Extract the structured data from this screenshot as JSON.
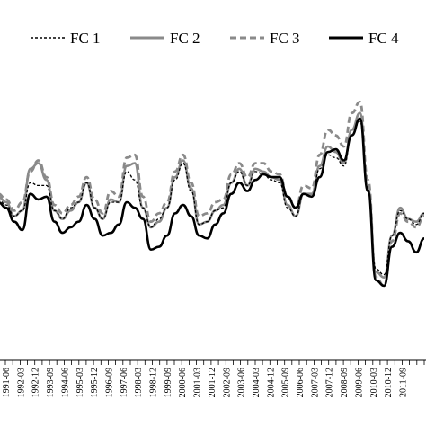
{
  "chart_data": {
    "type": "line",
    "title": "",
    "xlabel": "",
    "ylabel": "",
    "grid": false,
    "legend_position": "top",
    "x_tick_labels": [
      "1991-06",
      "1992-03",
      "1992-12",
      "1993-09",
      "1994-06",
      "1995-03",
      "1995-12",
      "1996-09",
      "1997-06",
      "1998-03",
      "1998-12",
      "1999-09",
      "2000-06",
      "2001-03",
      "2001-12",
      "2002-09",
      "2003-06",
      "2004-03",
      "2004-12",
      "2005-09",
      "2006-06",
      "2007-03",
      "2007-12",
      "2008-09",
      "2009-06",
      "2010-03",
      "2010-12",
      "2011-09"
    ],
    "ylim": [
      -100,
      100
    ],
    "series": [
      {
        "name": "FC 1",
        "color": "#000000",
        "style": "dashed-thin",
        "points": [
          [
            0,
            2
          ],
          [
            1,
            -2
          ],
          [
            2,
            -10
          ],
          [
            3,
            -6
          ],
          [
            4,
            14
          ],
          [
            5,
            12
          ],
          [
            6,
            12
          ],
          [
            7,
            -6
          ],
          [
            8,
            -12
          ],
          [
            9,
            -4
          ],
          [
            10,
            0
          ],
          [
            11,
            14
          ],
          [
            12,
            -4
          ],
          [
            13,
            -12
          ],
          [
            14,
            0
          ],
          [
            15,
            0
          ],
          [
            16,
            22
          ],
          [
            17,
            16
          ],
          [
            18,
            -4
          ],
          [
            19,
            -18
          ],
          [
            20,
            -12
          ],
          [
            21,
            -4
          ],
          [
            22,
            16
          ],
          [
            23,
            28
          ],
          [
            24,
            8
          ],
          [
            25,
            -16
          ],
          [
            26,
            -14
          ],
          [
            27,
            -6
          ],
          [
            28,
            -4
          ],
          [
            29,
            14
          ],
          [
            30,
            22
          ],
          [
            31,
            12
          ],
          [
            32,
            22
          ],
          [
            33,
            20
          ],
          [
            34,
            16
          ],
          [
            35,
            14
          ],
          [
            36,
            -4
          ],
          [
            37,
            -10
          ],
          [
            38,
            6
          ],
          [
            39,
            4
          ],
          [
            40,
            24
          ],
          [
            41,
            34
          ],
          [
            42,
            32
          ],
          [
            43,
            26
          ],
          [
            44,
            48
          ],
          [
            45,
            58
          ],
          [
            46,
            10
          ],
          [
            47,
            -48
          ],
          [
            48,
            -52
          ],
          [
            49,
            -24
          ],
          [
            50,
            -6
          ],
          [
            51,
            -12
          ],
          [
            52,
            -16
          ],
          [
            53,
            -8
          ]
        ]
      },
      {
        "name": "FC 2",
        "color": "#8a8a8a",
        "style": "solid-thick",
        "points": [
          [
            0,
            4
          ],
          [
            1,
            0
          ],
          [
            2,
            -10
          ],
          [
            3,
            -6
          ],
          [
            4,
            24
          ],
          [
            5,
            28
          ],
          [
            6,
            16
          ],
          [
            7,
            -6
          ],
          [
            8,
            -12
          ],
          [
            9,
            -6
          ],
          [
            10,
            0
          ],
          [
            11,
            14
          ],
          [
            12,
            -4
          ],
          [
            13,
            -12
          ],
          [
            14,
            2
          ],
          [
            15,
            0
          ],
          [
            16,
            26
          ],
          [
            17,
            28
          ],
          [
            18,
            -4
          ],
          [
            19,
            -18
          ],
          [
            20,
            -14
          ],
          [
            21,
            -4
          ],
          [
            22,
            18
          ],
          [
            23,
            30
          ],
          [
            24,
            10
          ],
          [
            25,
            -16
          ],
          [
            26,
            -14
          ],
          [
            27,
            -6
          ],
          [
            28,
            -2
          ],
          [
            29,
            14
          ],
          [
            30,
            24
          ],
          [
            31,
            12
          ],
          [
            32,
            24
          ],
          [
            33,
            22
          ],
          [
            34,
            18
          ],
          [
            35,
            16
          ],
          [
            36,
            -2
          ],
          [
            37,
            -10
          ],
          [
            38,
            6
          ],
          [
            39,
            6
          ],
          [
            40,
            26
          ],
          [
            41,
            40
          ],
          [
            42,
            36
          ],
          [
            43,
            28
          ],
          [
            44,
            52
          ],
          [
            45,
            64
          ],
          [
            46,
            10
          ],
          [
            47,
            -50
          ],
          [
            48,
            -54
          ],
          [
            49,
            -24
          ],
          [
            50,
            -4
          ],
          [
            51,
            -12
          ],
          [
            52,
            -14
          ],
          [
            53,
            -8
          ]
        ]
      },
      {
        "name": "FC 3",
        "color": "#8a8a8a",
        "style": "dashed-thick",
        "points": [
          [
            0,
            6
          ],
          [
            1,
            2
          ],
          [
            2,
            -6
          ],
          [
            3,
            0
          ],
          [
            4,
            22
          ],
          [
            5,
            30
          ],
          [
            6,
            18
          ],
          [
            7,
            -2
          ],
          [
            8,
            -8
          ],
          [
            9,
            -2
          ],
          [
            10,
            4
          ],
          [
            11,
            18
          ],
          [
            12,
            2
          ],
          [
            13,
            -8
          ],
          [
            14,
            8
          ],
          [
            15,
            4
          ],
          [
            16,
            32
          ],
          [
            17,
            34
          ],
          [
            18,
            4
          ],
          [
            19,
            -14
          ],
          [
            20,
            -8
          ],
          [
            21,
            0
          ],
          [
            22,
            22
          ],
          [
            23,
            34
          ],
          [
            24,
            14
          ],
          [
            25,
            -10
          ],
          [
            26,
            -8
          ],
          [
            27,
            0
          ],
          [
            28,
            2
          ],
          [
            29,
            20
          ],
          [
            30,
            28
          ],
          [
            31,
            18
          ],
          [
            32,
            28
          ],
          [
            33,
            28
          ],
          [
            34,
            22
          ],
          [
            35,
            20
          ],
          [
            36,
            4
          ],
          [
            37,
            -4
          ],
          [
            38,
            12
          ],
          [
            39,
            10
          ],
          [
            40,
            34
          ],
          [
            41,
            52
          ],
          [
            42,
            48
          ],
          [
            43,
            40
          ],
          [
            44,
            64
          ],
          [
            45,
            72
          ],
          [
            46,
            16
          ],
          [
            47,
            -54
          ],
          [
            48,
            -60
          ],
          [
            49,
            -28
          ],
          [
            50,
            -8
          ],
          [
            51,
            -14
          ],
          [
            52,
            -18
          ],
          [
            53,
            -10
          ]
        ]
      },
      {
        "name": "FC 4",
        "color": "#000000",
        "style": "solid-thick",
        "points": [
          [
            0,
            0
          ],
          [
            1,
            -4
          ],
          [
            2,
            -14
          ],
          [
            3,
            -20
          ],
          [
            4,
            6
          ],
          [
            5,
            2
          ],
          [
            6,
            4
          ],
          [
            7,
            -14
          ],
          [
            8,
            -22
          ],
          [
            9,
            -18
          ],
          [
            10,
            -14
          ],
          [
            11,
            -2
          ],
          [
            12,
            -12
          ],
          [
            13,
            -24
          ],
          [
            14,
            -22
          ],
          [
            15,
            -16
          ],
          [
            16,
            0
          ],
          [
            17,
            -4
          ],
          [
            18,
            -12
          ],
          [
            19,
            -34
          ],
          [
            20,
            -32
          ],
          [
            21,
            -24
          ],
          [
            22,
            -8
          ],
          [
            23,
            -2
          ],
          [
            24,
            -10
          ],
          [
            25,
            -24
          ],
          [
            26,
            -26
          ],
          [
            27,
            -16
          ],
          [
            28,
            -8
          ],
          [
            29,
            6
          ],
          [
            30,
            14
          ],
          [
            31,
            8
          ],
          [
            32,
            16
          ],
          [
            33,
            20
          ],
          [
            34,
            18
          ],
          [
            35,
            18
          ],
          [
            36,
            4
          ],
          [
            37,
            -4
          ],
          [
            38,
            6
          ],
          [
            39,
            4
          ],
          [
            40,
            18
          ],
          [
            41,
            36
          ],
          [
            42,
            38
          ],
          [
            43,
            30
          ],
          [
            44,
            48
          ],
          [
            45,
            60
          ],
          [
            46,
            8
          ],
          [
            47,
            -56
          ],
          [
            48,
            -60
          ],
          [
            49,
            -32
          ],
          [
            50,
            -22
          ],
          [
            51,
            -28
          ],
          [
            52,
            -36
          ],
          [
            53,
            -26
          ]
        ]
      }
    ]
  }
}
